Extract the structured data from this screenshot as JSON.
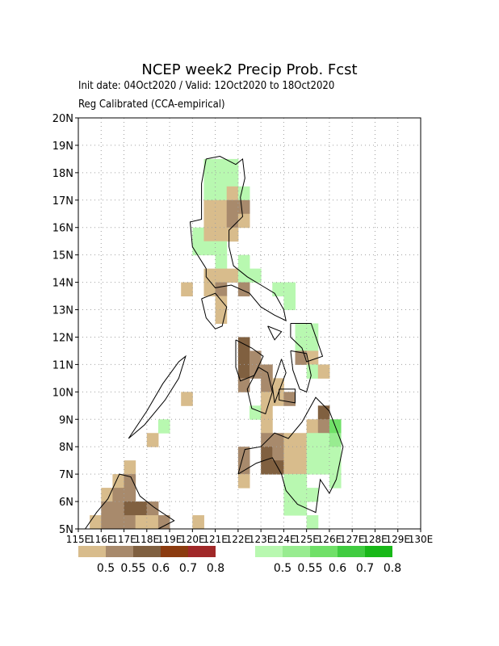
{
  "title": "NCEP week2 Precip Prob. Fcst",
  "subtitle_line1": "Init date: 04Oct2020 / Valid: 12Oct2020 to 18Oct2020",
  "subtitle_line2": "Reg Calibrated (CCA-empirical)",
  "lat_labels": [
    "5N",
    "6N",
    "7N",
    "8N",
    "9N",
    "10N",
    "11N",
    "12N",
    "13N",
    "14N",
    "15N",
    "16N",
    "17N",
    "18N",
    "19N",
    "20N"
  ],
  "lon_labels": [
    "115E",
    "116E",
    "117E",
    "118E",
    "119E",
    "120E",
    "121E",
    "122E",
    "123E",
    "124E",
    "125E",
    "126E",
    "127E",
    "128E",
    "129E",
    "130E"
  ],
  "dry_legend": {
    "colors": [
      "#d8bc8c",
      "#a88a6c",
      "#806040",
      "#8c3c10",
      "#a02828"
    ],
    "labels": [
      "0.5",
      "0.55",
      "0.6",
      "0.7",
      "0.8"
    ]
  },
  "wet_legend": {
    "colors": [
      "#b8f8b0",
      "#98ec90",
      "#70e068",
      "#40cc40",
      "#18b818"
    ],
    "labels": [
      "0.5",
      "0.55",
      "0.6",
      "0.7",
      "0.8"
    ]
  },
  "colors": {
    "coast": "#000000",
    "grid": "#a0a0a0",
    "frame": "#000000"
  }
}
